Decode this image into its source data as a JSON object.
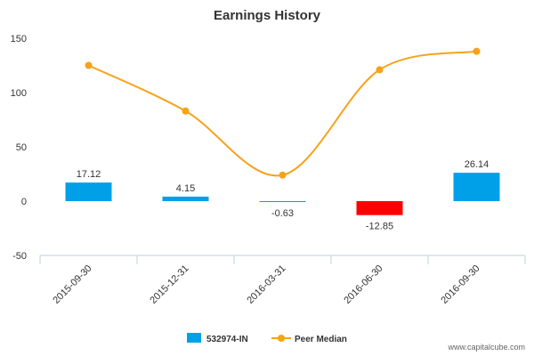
{
  "chart_data": {
    "type": "bar",
    "title": "Earnings History",
    "categories": [
      "2015-09-30",
      "2015-12-31",
      "2016-03-31",
      "2016-06-30",
      "2016-09-30"
    ],
    "ylim": [
      -50,
      150
    ],
    "yticks": [
      -50,
      0,
      50,
      100,
      150
    ],
    "grid": false,
    "legend_position": "bottom",
    "series": [
      {
        "name": "532974-IN",
        "type": "bar",
        "values": [
          17.12,
          4.15,
          -0.63,
          -12.85,
          26.14
        ],
        "data_labels": [
          "17.12",
          "4.15",
          "-0.63",
          "-12.85",
          "26.14"
        ],
        "color": "#00a0e9",
        "negative_color": "#ff0000"
      },
      {
        "name": "Peer Median",
        "type": "line",
        "values": [
          125,
          83,
          24,
          121,
          138
        ],
        "color": "#f7a21b"
      }
    ]
  },
  "credit": "www.capitalcube.com"
}
